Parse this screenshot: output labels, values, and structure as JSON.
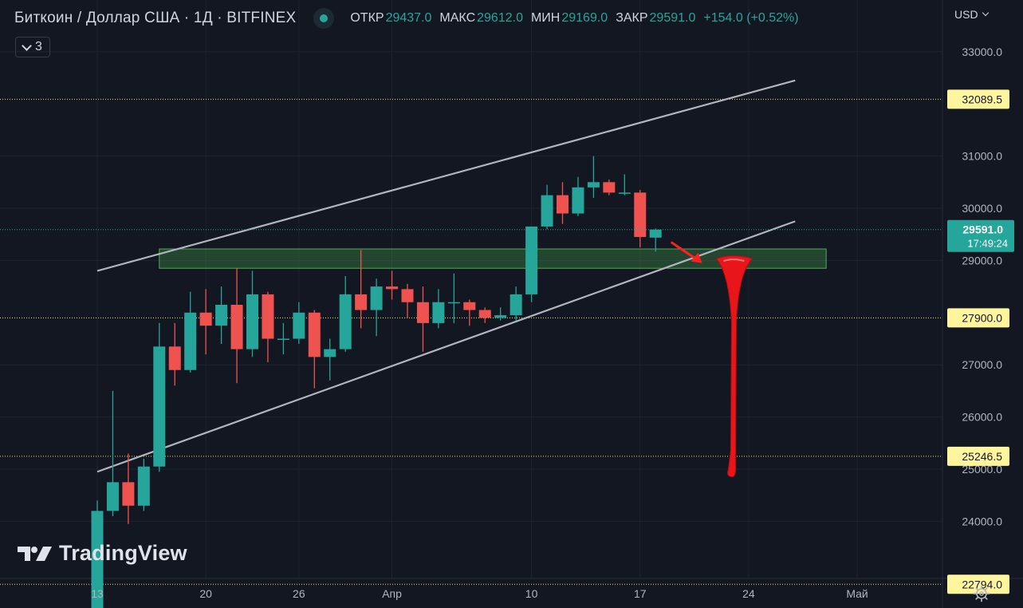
{
  "header": {
    "symbol": "Биткоин / Доллар США · 1Д · BITFINEX",
    "open_label": "ОТКР",
    "open_value": "29437.0",
    "high_label": "МАКС",
    "high_value": "29612.0",
    "low_label": "МИН",
    "low_value": "29169.0",
    "close_label": "ЗАКР",
    "close_value": "29591.0",
    "change": "+154.0 (+0.52%)"
  },
  "collapse_button": {
    "count": "3"
  },
  "currency": {
    "label": "USD"
  },
  "logo": {
    "text": "TradingView"
  },
  "colors": {
    "up": "#26a69a",
    "down": "#ef5350",
    "background": "#131722",
    "hline": "#f0e36a",
    "zone": "#4caf50",
    "arrow": "#ff1f1f"
  },
  "chart_data": {
    "type": "candlestick",
    "y_axis": {
      "ticks": [
        33000,
        31000,
        30000,
        29000,
        27000,
        26000,
        25000,
        24000
      ],
      "tick_labels": [
        "33000.0",
        "31000.0",
        "30000.0",
        "29000.0",
        "27000.0",
        "26000.0",
        "25000.0",
        "24000.0"
      ]
    },
    "x_axis": {
      "ticks": [
        {
          "label": "13",
          "date": "2023-03-13"
        },
        {
          "label": "20",
          "date": "2023-03-20"
        },
        {
          "label": "26",
          "date": "2023-03-26"
        },
        {
          "label": "Апр",
          "date": "2023-04-01"
        },
        {
          "label": "10",
          "date": "2023-04-10"
        },
        {
          "label": "17",
          "date": "2023-04-17"
        },
        {
          "label": "24",
          "date": "2023-04-24"
        },
        {
          "label": "Май",
          "date": "2023-05-01"
        }
      ]
    },
    "candles": [
      {
        "date": "2023-03-13",
        "open": 22300,
        "high": 24400,
        "low": 22000,
        "close": 24200
      },
      {
        "date": "2023-03-14",
        "open": 24200,
        "high": 26500,
        "low": 24100,
        "close": 24750
      },
      {
        "date": "2023-03-15",
        "open": 24750,
        "high": 25300,
        "low": 23950,
        "close": 24300
      },
      {
        "date": "2023-03-16",
        "open": 24300,
        "high": 25200,
        "low": 24200,
        "close": 25050
      },
      {
        "date": "2023-03-17",
        "open": 25050,
        "high": 27800,
        "low": 24950,
        "close": 27350
      },
      {
        "date": "2023-03-18",
        "open": 27350,
        "high": 27800,
        "low": 26600,
        "close": 26900
      },
      {
        "date": "2023-03-19",
        "open": 26900,
        "high": 28400,
        "low": 26850,
        "close": 28000
      },
      {
        "date": "2023-03-20",
        "open": 28000,
        "high": 28450,
        "low": 27200,
        "close": 27750
      },
      {
        "date": "2023-03-21",
        "open": 27750,
        "high": 28500,
        "low": 27400,
        "close": 28150
      },
      {
        "date": "2023-03-22",
        "open": 28150,
        "high": 28850,
        "low": 26650,
        "close": 27300
      },
      {
        "date": "2023-03-23",
        "open": 27300,
        "high": 28800,
        "low": 27150,
        "close": 28350
      },
      {
        "date": "2023-03-24",
        "open": 28350,
        "high": 28400,
        "low": 27050,
        "close": 27500
      },
      {
        "date": "2023-03-25",
        "open": 27500,
        "high": 27800,
        "low": 27200,
        "close": 27500
      },
      {
        "date": "2023-03-26",
        "open": 27500,
        "high": 28200,
        "low": 27400,
        "close": 28000
      },
      {
        "date": "2023-03-27",
        "open": 28000,
        "high": 28050,
        "low": 26550,
        "close": 27150
      },
      {
        "date": "2023-03-28",
        "open": 27150,
        "high": 27500,
        "low": 26700,
        "close": 27300
      },
      {
        "date": "2023-03-29",
        "open": 27300,
        "high": 28700,
        "low": 27250,
        "close": 28350
      },
      {
        "date": "2023-03-30",
        "open": 28350,
        "high": 29200,
        "low": 27700,
        "close": 28050
      },
      {
        "date": "2023-03-31",
        "open": 28050,
        "high": 28650,
        "low": 27550,
        "close": 28500
      },
      {
        "date": "2023-04-01",
        "open": 28500,
        "high": 28800,
        "low": 28250,
        "close": 28450
      },
      {
        "date": "2023-04-02",
        "open": 28450,
        "high": 28550,
        "low": 27900,
        "close": 28200
      },
      {
        "date": "2023-04-03",
        "open": 28200,
        "high": 28500,
        "low": 27250,
        "close": 27800
      },
      {
        "date": "2023-04-04",
        "open": 27800,
        "high": 28450,
        "low": 27700,
        "close": 28200
      },
      {
        "date": "2023-04-05",
        "open": 28200,
        "high": 28750,
        "low": 27800,
        "close": 28200
      },
      {
        "date": "2023-04-06",
        "open": 28200,
        "high": 28250,
        "low": 27750,
        "close": 28050
      },
      {
        "date": "2023-04-07",
        "open": 28050,
        "high": 28100,
        "low": 27800,
        "close": 27900
      },
      {
        "date": "2023-04-08",
        "open": 27900,
        "high": 28100,
        "low": 27850,
        "close": 27950
      },
      {
        "date": "2023-04-09",
        "open": 27950,
        "high": 28500,
        "low": 27850,
        "close": 28350
      },
      {
        "date": "2023-04-10",
        "open": 28350,
        "high": 29650,
        "low": 28200,
        "close": 29650
      },
      {
        "date": "2023-04-11",
        "open": 29650,
        "high": 30450,
        "low": 29600,
        "close": 30250
      },
      {
        "date": "2023-04-12",
        "open": 30250,
        "high": 30500,
        "low": 29700,
        "close": 29900
      },
      {
        "date": "2023-04-13",
        "open": 29900,
        "high": 30600,
        "low": 29850,
        "close": 30400
      },
      {
        "date": "2023-04-14",
        "open": 30400,
        "high": 31000,
        "low": 30200,
        "close": 30500
      },
      {
        "date": "2023-04-15",
        "open": 30500,
        "high": 30550,
        "low": 30250,
        "close": 30300
      },
      {
        "date": "2023-04-16",
        "open": 30300,
        "high": 30650,
        "low": 30250,
        "close": 30300
      },
      {
        "date": "2023-04-17",
        "open": 30300,
        "high": 30350,
        "low": 29250,
        "close": 29450
      },
      {
        "date": "2023-04-18",
        "open": 29437,
        "high": 29612,
        "low": 29169,
        "close": 29591
      }
    ],
    "horizontal_lines": [
      {
        "price": 32089.5,
        "label": "32089.5"
      },
      {
        "price": 27900.0,
        "label": "27900.0"
      },
      {
        "price": 25246.5,
        "label": "25246.5"
      },
      {
        "price": 22794.0,
        "label": "22794.0"
      }
    ],
    "last_price": {
      "label": "29591.0",
      "countdown": "17:49:24"
    },
    "zone": {
      "date_from": "2023-03-17",
      "date_to": "2023-04-29",
      "price_low": 28850,
      "price_high": 29220
    },
    "channel": {
      "upper": {
        "from": {
          "date": "2023-03-13",
          "price": 28800
        },
        "to": {
          "date": "2023-04-27",
          "price": 32450
        }
      },
      "lower": {
        "from": {
          "date": "2023-03-13",
          "price": 24950
        },
        "to": {
          "date": "2023-04-27",
          "price": 29750
        }
      }
    },
    "annotation_arrow": {
      "from": {
        "date": "2023-04-19",
        "price": 29350
      },
      "to": {
        "date": "2023-04-21",
        "price": 28950
      }
    },
    "drip": {
      "date": "2023-04-23",
      "price_top": 29050,
      "price_bottom": 24900
    }
  }
}
